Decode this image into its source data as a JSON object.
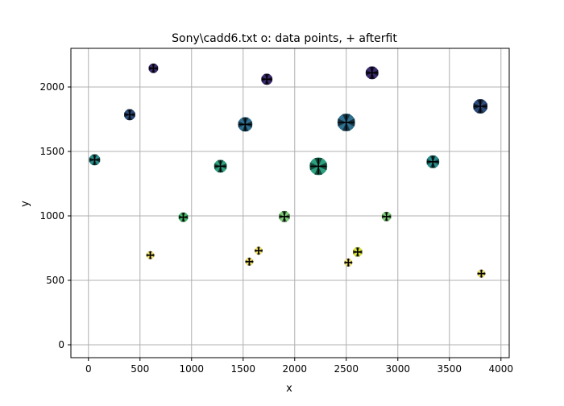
{
  "chart_data": {
    "type": "scatter",
    "title": "Sony\\cadd6.txt  o: data points, + afterfit",
    "xlabel": "x",
    "ylabel": "y",
    "xlim": [
      -170,
      4080
    ],
    "ylim": [
      -100,
      2300
    ],
    "xticks": [
      0,
      500,
      1000,
      1500,
      2000,
      2500,
      3000,
      3500,
      4000
    ],
    "yticks": [
      0,
      500,
      1000,
      1500,
      2000
    ],
    "grid": true,
    "legend": "none",
    "marker_legend": {
      "o": "data points",
      "+": "afterfit"
    },
    "points": [
      {
        "x": 60,
        "y": 1435,
        "size": 7,
        "shade": "teal-dark"
      },
      {
        "x": 400,
        "y": 1785,
        "size": 7,
        "shade": "navy"
      },
      {
        "x": 630,
        "y": 2145,
        "size": 6,
        "shade": "indigo"
      },
      {
        "x": 600,
        "y": 695,
        "size": 5,
        "shade": "yellow"
      },
      {
        "x": 920,
        "y": 990,
        "size": 6,
        "shade": "green"
      },
      {
        "x": 1280,
        "y": 1385,
        "size": 8,
        "shade": "teal"
      },
      {
        "x": 1520,
        "y": 1710,
        "size": 9,
        "shade": "slate"
      },
      {
        "x": 1560,
        "y": 645,
        "size": 5,
        "shade": "yellow"
      },
      {
        "x": 1650,
        "y": 730,
        "size": 5,
        "shade": "yellow"
      },
      {
        "x": 1730,
        "y": 2060,
        "size": 7,
        "shade": "indigo"
      },
      {
        "x": 1900,
        "y": 995,
        "size": 7,
        "shade": "green-light"
      },
      {
        "x": 2230,
        "y": 1385,
        "size": 11,
        "shade": "teal"
      },
      {
        "x": 2500,
        "y": 1725,
        "size": 11,
        "shade": "slate"
      },
      {
        "x": 2520,
        "y": 638,
        "size": 5,
        "shade": "yellow"
      },
      {
        "x": 2610,
        "y": 720,
        "size": 6,
        "shade": "yellow-green"
      },
      {
        "x": 2750,
        "y": 2110,
        "size": 8,
        "shade": "indigo"
      },
      {
        "x": 2890,
        "y": 995,
        "size": 6,
        "shade": "green-light"
      },
      {
        "x": 3340,
        "y": 1420,
        "size": 8,
        "shade": "teal-dark"
      },
      {
        "x": 3800,
        "y": 1850,
        "size": 9,
        "shade": "navy"
      },
      {
        "x": 3810,
        "y": 552,
        "size": 5,
        "shade": "yellow"
      }
    ],
    "colors": {
      "grid": "#b0b0b0",
      "axis": "#000000",
      "cross": "#000000",
      "navy": "#2c4a7a",
      "indigo": "#3b2a6e",
      "slate": "#2f6f8f",
      "teal-dark": "#2a8b8a",
      "teal": "#2da07f",
      "green": "#45b86a",
      "green-light": "#7fcf7a",
      "yellow-green": "#d8e23a",
      "yellow": "#f4e36b"
    }
  }
}
